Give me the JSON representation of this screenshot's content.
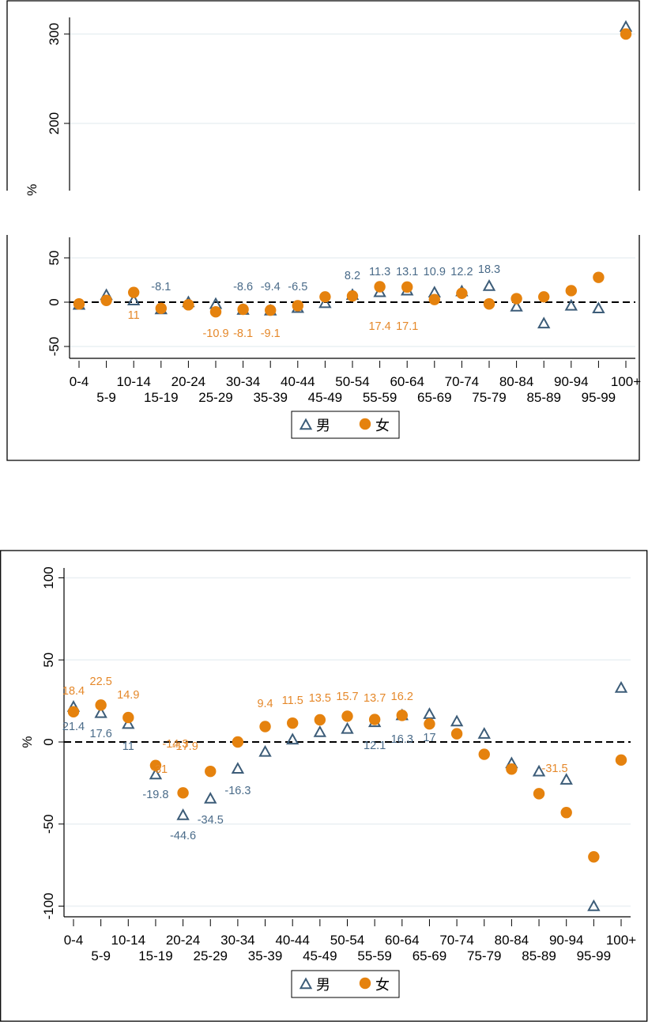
{
  "colors": {
    "male": "#3c5c78",
    "female": "#e5820e",
    "male_label": "#4a6b89",
    "female_label": "#e5882a"
  },
  "chart_data": [
    {
      "type": "scatter",
      "title": "",
      "xlabel": "",
      "ylabel": "%",
      "broken_y_axis": true,
      "upper_segment": {
        "ylim": [
          120,
          320
        ],
        "yticks": [
          "300",
          "200"
        ]
      },
      "lower_segment": {
        "ylim": [
          -60,
          75
        ],
        "yticks": [
          "50",
          "0",
          "-50"
        ]
      },
      "reference_line": 0,
      "categories": [
        "0-4",
        "5-9",
        "10-14",
        "15-19",
        "20-24",
        "25-29",
        "30-34",
        "35-39",
        "40-44",
        "45-49",
        "50-54",
        "55-59",
        "60-64",
        "65-69",
        "70-74",
        "75-79",
        "80-84",
        "85-89",
        "90-94",
        "95-99",
        "100+"
      ],
      "series": [
        {
          "name": "男",
          "marker": "triangle-hollow",
          "values": [
            -3,
            8,
            2,
            -8.1,
            0,
            -2,
            -8.6,
            -9.4,
            -6.5,
            -1,
            8.2,
            11.3,
            13.1,
            10.9,
            12.2,
            18.3,
            -5,
            -24,
            -4,
            -7,
            308
          ],
          "labels": [
            null,
            null,
            null,
            "-8.1",
            null,
            null,
            "-8.6",
            "-9.4",
            "-6.5",
            null,
            "8.2",
            "11.3",
            "13.1",
            "10.9",
            "12.2",
            "18.3",
            null,
            null,
            null,
            null,
            null
          ]
        },
        {
          "name": "女",
          "marker": "circle-filled",
          "values": [
            -2,
            2,
            11,
            -7,
            -3,
            -10.9,
            -8.1,
            -9.1,
            -4,
            6,
            7,
            17.4,
            17.1,
            3,
            10,
            -2,
            4,
            6,
            13,
            28,
            300
          ],
          "labels": [
            null,
            null,
            "11",
            null,
            null,
            "-10.9",
            "-8.1",
            "-9.1",
            null,
            null,
            null,
            "17.4",
            "17.1",
            null,
            null,
            null,
            null,
            null,
            null,
            null,
            null
          ]
        }
      ],
      "legend": {
        "position": "bottom",
        "entries": [
          "男",
          "女"
        ]
      }
    },
    {
      "type": "scatter",
      "title": "",
      "xlabel": "",
      "ylabel": "%",
      "ylim": [
        -105,
        105
      ],
      "yticks": [
        "100",
        "50",
        "0",
        "-50",
        "-100"
      ],
      "reference_line": 0,
      "categories": [
        "0-4",
        "5-9",
        "10-14",
        "15-19",
        "20-24",
        "25-29",
        "30-34",
        "35-39",
        "40-44",
        "45-49",
        "50-54",
        "55-59",
        "60-64",
        "65-69",
        "70-74",
        "75-79",
        "80-84",
        "85-89",
        "90-94",
        "95-99",
        "100+"
      ],
      "series": [
        {
          "name": "男",
          "marker": "triangle-hollow",
          "values": [
            21.4,
            17.6,
            11,
            -19.8,
            -44.6,
            -34.5,
            -16.3,
            -6,
            1.5,
            6,
            8,
            12.1,
            16.3,
            17,
            12.5,
            5,
            -13,
            -18,
            -23,
            -100,
            33
          ],
          "labels": [
            "21.4",
            "17.6",
            "11",
            "-19.8",
            "-44.6",
            "-34.5",
            "-16.3",
            null,
            null,
            null,
            null,
            "12.1",
            "16.3",
            "17",
            null,
            null,
            null,
            null,
            null,
            null,
            null
          ]
        },
        {
          "name": "女",
          "marker": "circle-filled",
          "values": [
            18.4,
            22.5,
            14.9,
            -14.3,
            -31,
            -17.9,
            0,
            9.4,
            11.5,
            13.5,
            15.7,
            13.7,
            16.2,
            11,
            5,
            -7.5,
            -16.5,
            -31.5,
            -43,
            -70,
            -11
          ],
          "labels": [
            "18.4",
            "22.5",
            "14.9",
            "-14.3",
            "-31",
            "-17.9",
            null,
            "9.4",
            "11.5",
            "13.5",
            "15.7",
            "13.7",
            "16.2",
            null,
            null,
            null,
            null,
            "-31.5",
            null,
            null,
            null
          ]
        }
      ],
      "legend": {
        "position": "bottom",
        "entries": [
          "男",
          "女"
        ]
      }
    }
  ]
}
